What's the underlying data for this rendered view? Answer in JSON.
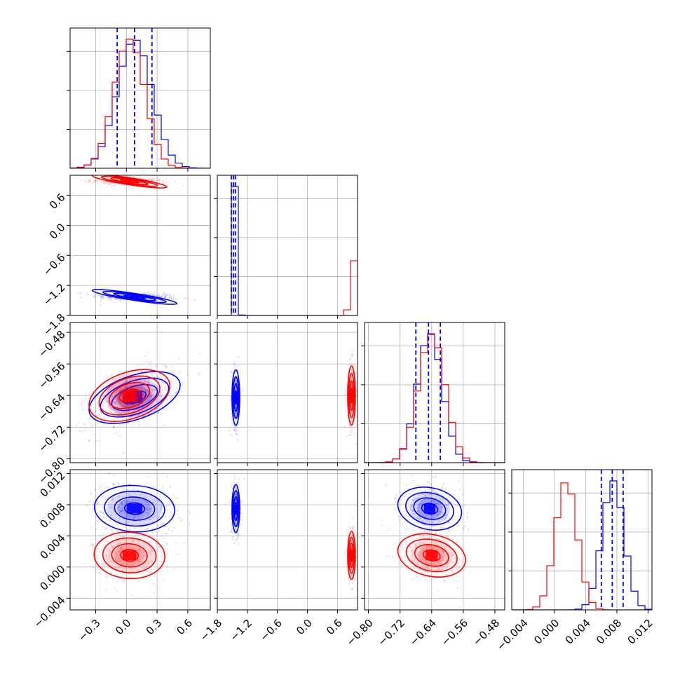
{
  "colors": {
    "series_a": "#0000ff",
    "series_b": "#ff0000",
    "grid": "#b0b0b0"
  },
  "chart_data": {
    "type": "corner",
    "grid": true,
    "legend": "none",
    "series": [
      {
        "color": "#0000ff",
        "params": [
          {
            "mean": 0.08,
            "sd": 0.17,
            "quantiles": [
              -0.09,
              0.08,
              0.25
            ]
          },
          {
            "mean": -1.43,
            "sd": 0.035,
            "quantiles": [
              -1.52,
              -1.48,
              -1.44
            ]
          },
          {
            "mean": -0.645,
            "sd": 0.032,
            "quantiles": [
              -0.68,
              -0.648,
              -0.618
            ]
          },
          {
            "mean": 0.0075,
            "sd": 0.0014,
            "quantiles": [
              0.006,
              0.0074,
              0.0088
            ]
          }
        ]
      },
      {
        "color": "#ff0000",
        "params": [
          {
            "mean": 0.03,
            "sd": 0.15
          },
          {
            "mean": 0.88,
            "sd": 0.035
          },
          {
            "mean": -0.64,
            "sd": 0.034
          },
          {
            "mean": 0.0015,
            "sd": 0.0014
          }
        ]
      }
    ],
    "axes": [
      {
        "range": [
          -0.55,
          0.82
        ],
        "ticks": [
          -0.3,
          0.0,
          0.3,
          0.6
        ],
        "tick_labels": [
          "−0.3",
          "0.0",
          "0.3",
          "0.6"
        ]
      },
      {
        "range": [
          -1.8,
          1.0
        ],
        "ticks": [
          -1.8,
          -1.2,
          -0.6,
          0.0,
          0.6
        ],
        "tick_labels": [
          "−1.8",
          "−1.2",
          "−0.6",
          "0.0",
          "0.6"
        ]
      },
      {
        "range": [
          -0.81,
          -0.455
        ],
        "ticks": [
          -0.8,
          -0.72,
          -0.64,
          -0.56,
          -0.48
        ],
        "tick_labels": [
          "−0.80",
          "−0.72",
          "−0.64",
          "−0.56",
          "−0.48"
        ]
      },
      {
        "range": [
          -0.0055,
          0.0125
        ],
        "ticks": [
          -0.004,
          0.0,
          0.004,
          0.008,
          0.012
        ],
        "tick_labels": [
          "−0.004",
          "0.000",
          "0.004",
          "0.008",
          "0.012"
        ]
      }
    ]
  }
}
